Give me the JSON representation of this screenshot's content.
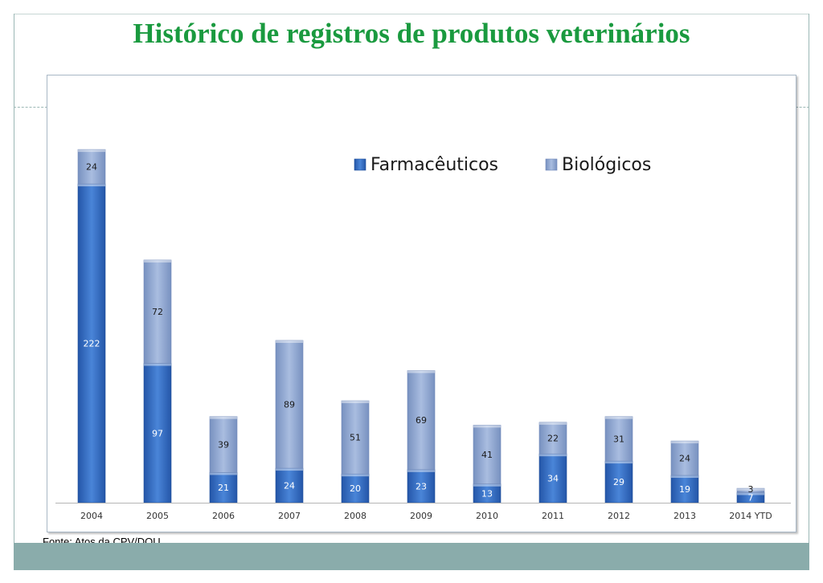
{
  "title": "Histórico de registros de produtos veterinários",
  "source": "Fonte: Atos da CPV/DOU",
  "chart_data": {
    "type": "bar",
    "stacked": true,
    "categories": [
      "2004",
      "2005",
      "2006",
      "2007",
      "2008",
      "2009",
      "2010",
      "2011",
      "2012",
      "2013",
      "2014 YTD"
    ],
    "series": [
      {
        "name": "Farmacêuticos",
        "color": "#2f66bd",
        "values": [
          222,
          97,
          21,
          24,
          20,
          23,
          13,
          34,
          29,
          19,
          7
        ]
      },
      {
        "name": "Biológicos",
        "color": "#8fa8d3",
        "values": [
          24,
          72,
          39,
          89,
          51,
          69,
          41,
          22,
          31,
          24,
          3
        ]
      }
    ],
    "legend_position": "top-right",
    "grid": false,
    "ylim": [
      0,
      250
    ]
  }
}
